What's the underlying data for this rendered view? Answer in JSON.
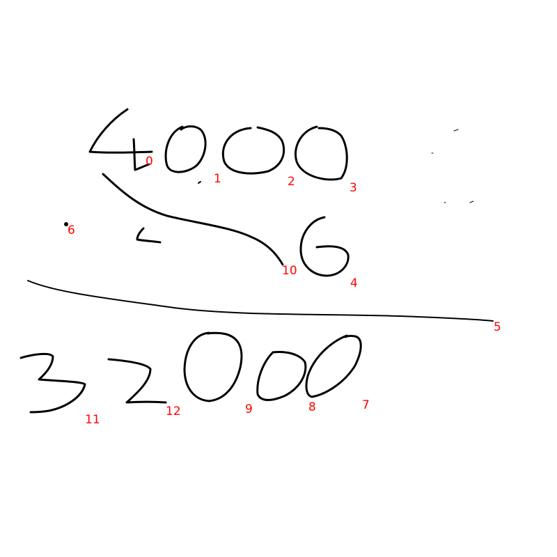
{
  "colors": {
    "background": "#ffffff",
    "ink": "#000000",
    "label": "#ff0000"
  },
  "labels": {
    "l0": "0",
    "l1": "1",
    "l2": "2",
    "l3": "3",
    "l4": "4",
    "l5": "5",
    "l6": "6",
    "l7": "7",
    "l8": "8",
    "l9": "9",
    "l10": "10",
    "l11": "11",
    "l12": "12"
  }
}
